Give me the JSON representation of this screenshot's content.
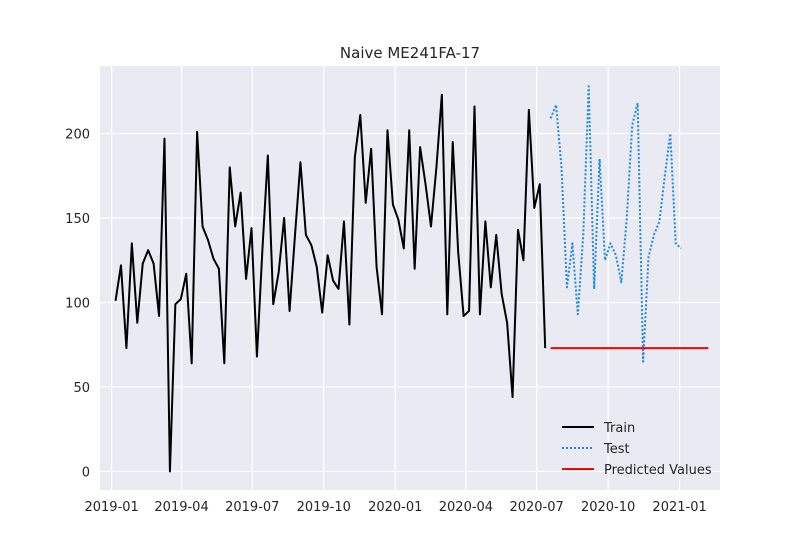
{
  "chart_data": {
    "type": "line",
    "title": "Naive ME241FA-17",
    "xlabel": "",
    "ylabel": "",
    "x_ticks": [
      "2019-01",
      "2019-04",
      "2019-07",
      "2019-10",
      "2020-01",
      "2020-04",
      "2020-07",
      "2020-10",
      "2021-01"
    ],
    "y_ticks": [
      0,
      50,
      100,
      150,
      200
    ],
    "xlim": [
      "2018-12-17",
      "2021-02-22"
    ],
    "ylim": [
      -11,
      240
    ],
    "grid": true,
    "legend_position": "lower right",
    "series": [
      {
        "name": "Train",
        "color": "#000000",
        "style": "solid",
        "x": [
          "2019-01-06",
          "2019-01-13",
          "2019-01-20",
          "2019-01-27",
          "2019-02-03",
          "2019-02-10",
          "2019-02-17",
          "2019-02-24",
          "2019-03-03",
          "2019-03-10",
          "2019-03-17",
          "2019-03-24",
          "2019-03-31",
          "2019-04-07",
          "2019-04-14",
          "2019-04-21",
          "2019-04-28",
          "2019-05-05",
          "2019-05-12",
          "2019-05-19",
          "2019-05-26",
          "2019-06-02",
          "2019-06-09",
          "2019-06-16",
          "2019-06-23",
          "2019-06-30",
          "2019-07-07",
          "2019-07-14",
          "2019-07-21",
          "2019-07-28",
          "2019-08-04",
          "2019-08-11",
          "2019-08-18",
          "2019-08-25",
          "2019-09-01",
          "2019-09-08",
          "2019-09-15",
          "2019-09-22",
          "2019-09-29",
          "2019-10-06",
          "2019-10-13",
          "2019-10-20",
          "2019-10-27",
          "2019-11-03",
          "2019-11-10",
          "2019-11-17",
          "2019-11-24",
          "2019-12-01",
          "2019-12-08",
          "2019-12-15",
          "2019-12-22",
          "2019-12-29",
          "2020-01-05",
          "2020-01-12",
          "2020-01-19",
          "2020-01-26",
          "2020-02-02",
          "2020-02-09",
          "2020-02-16",
          "2020-02-23",
          "2020-03-01",
          "2020-03-08",
          "2020-03-15",
          "2020-03-22",
          "2020-03-29",
          "2020-04-05",
          "2020-04-12",
          "2020-04-19",
          "2020-04-26",
          "2020-05-03",
          "2020-05-10",
          "2020-05-17",
          "2020-05-24",
          "2020-05-31",
          "2020-06-07",
          "2020-06-14",
          "2020-06-21",
          "2020-06-28",
          "2020-07-05",
          "2020-07-12"
        ],
        "values": [
          101,
          122,
          73,
          135,
          88,
          123,
          131,
          123,
          92,
          197,
          0,
          99,
          102,
          117,
          64,
          201,
          145,
          137,
          126,
          120,
          64,
          180,
          145,
          165,
          114,
          144,
          68,
          131,
          187,
          99,
          118,
          150,
          95,
          140,
          183,
          140,
          134,
          121,
          94,
          128,
          113,
          108,
          148,
          87,
          186,
          211,
          159,
          191,
          121,
          93,
          202,
          158,
          149,
          132,
          202,
          120,
          192,
          170,
          145,
          180,
          223,
          93,
          195,
          130,
          92,
          95,
          216,
          93,
          148,
          109,
          140,
          105,
          88,
          44,
          143,
          125,
          214,
          156,
          170,
          73
        ]
      },
      {
        "name": "Test",
        "color": "#1e88e5",
        "style": "dotted",
        "x": [
          "2020-07-19",
          "2020-07-26",
          "2020-08-02",
          "2020-08-09",
          "2020-08-16",
          "2020-08-23",
          "2020-08-30",
          "2020-09-06",
          "2020-09-13",
          "2020-09-20",
          "2020-09-27",
          "2020-10-04",
          "2020-10-11",
          "2020-10-18",
          "2020-10-25",
          "2020-11-01",
          "2020-11-08",
          "2020-11-15",
          "2020-11-22",
          "2020-11-29",
          "2020-12-06",
          "2020-12-13",
          "2020-12-20",
          "2020-12-27",
          "2021-01-03"
        ],
        "values": [
          209,
          217,
          180,
          109,
          135,
          93,
          140,
          228,
          108,
          185,
          125,
          135,
          128,
          112,
          150,
          205,
          218,
          65,
          127,
          140,
          148,
          175,
          200,
          135,
          132
        ]
      },
      {
        "name": "Predicted Values",
        "color": "#ff0000",
        "style": "solid",
        "x": [
          "2020-07-19",
          "2021-02-07"
        ],
        "values": [
          73,
          73
        ]
      }
    ]
  }
}
